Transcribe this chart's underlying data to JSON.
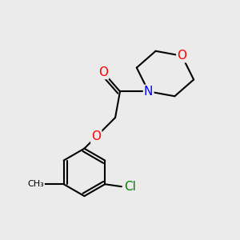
{
  "bg_color": "#ebebeb",
  "bond_color": "#000000",
  "bond_width": 1.5,
  "atom_colors": {
    "O": "#ff0000",
    "N": "#0000ff",
    "Cl": "#008000",
    "C": "#000000"
  },
  "font_size_atom": 11,
  "font_size_label": 9,
  "figsize": [
    3.0,
    3.0
  ],
  "dpi": 100
}
